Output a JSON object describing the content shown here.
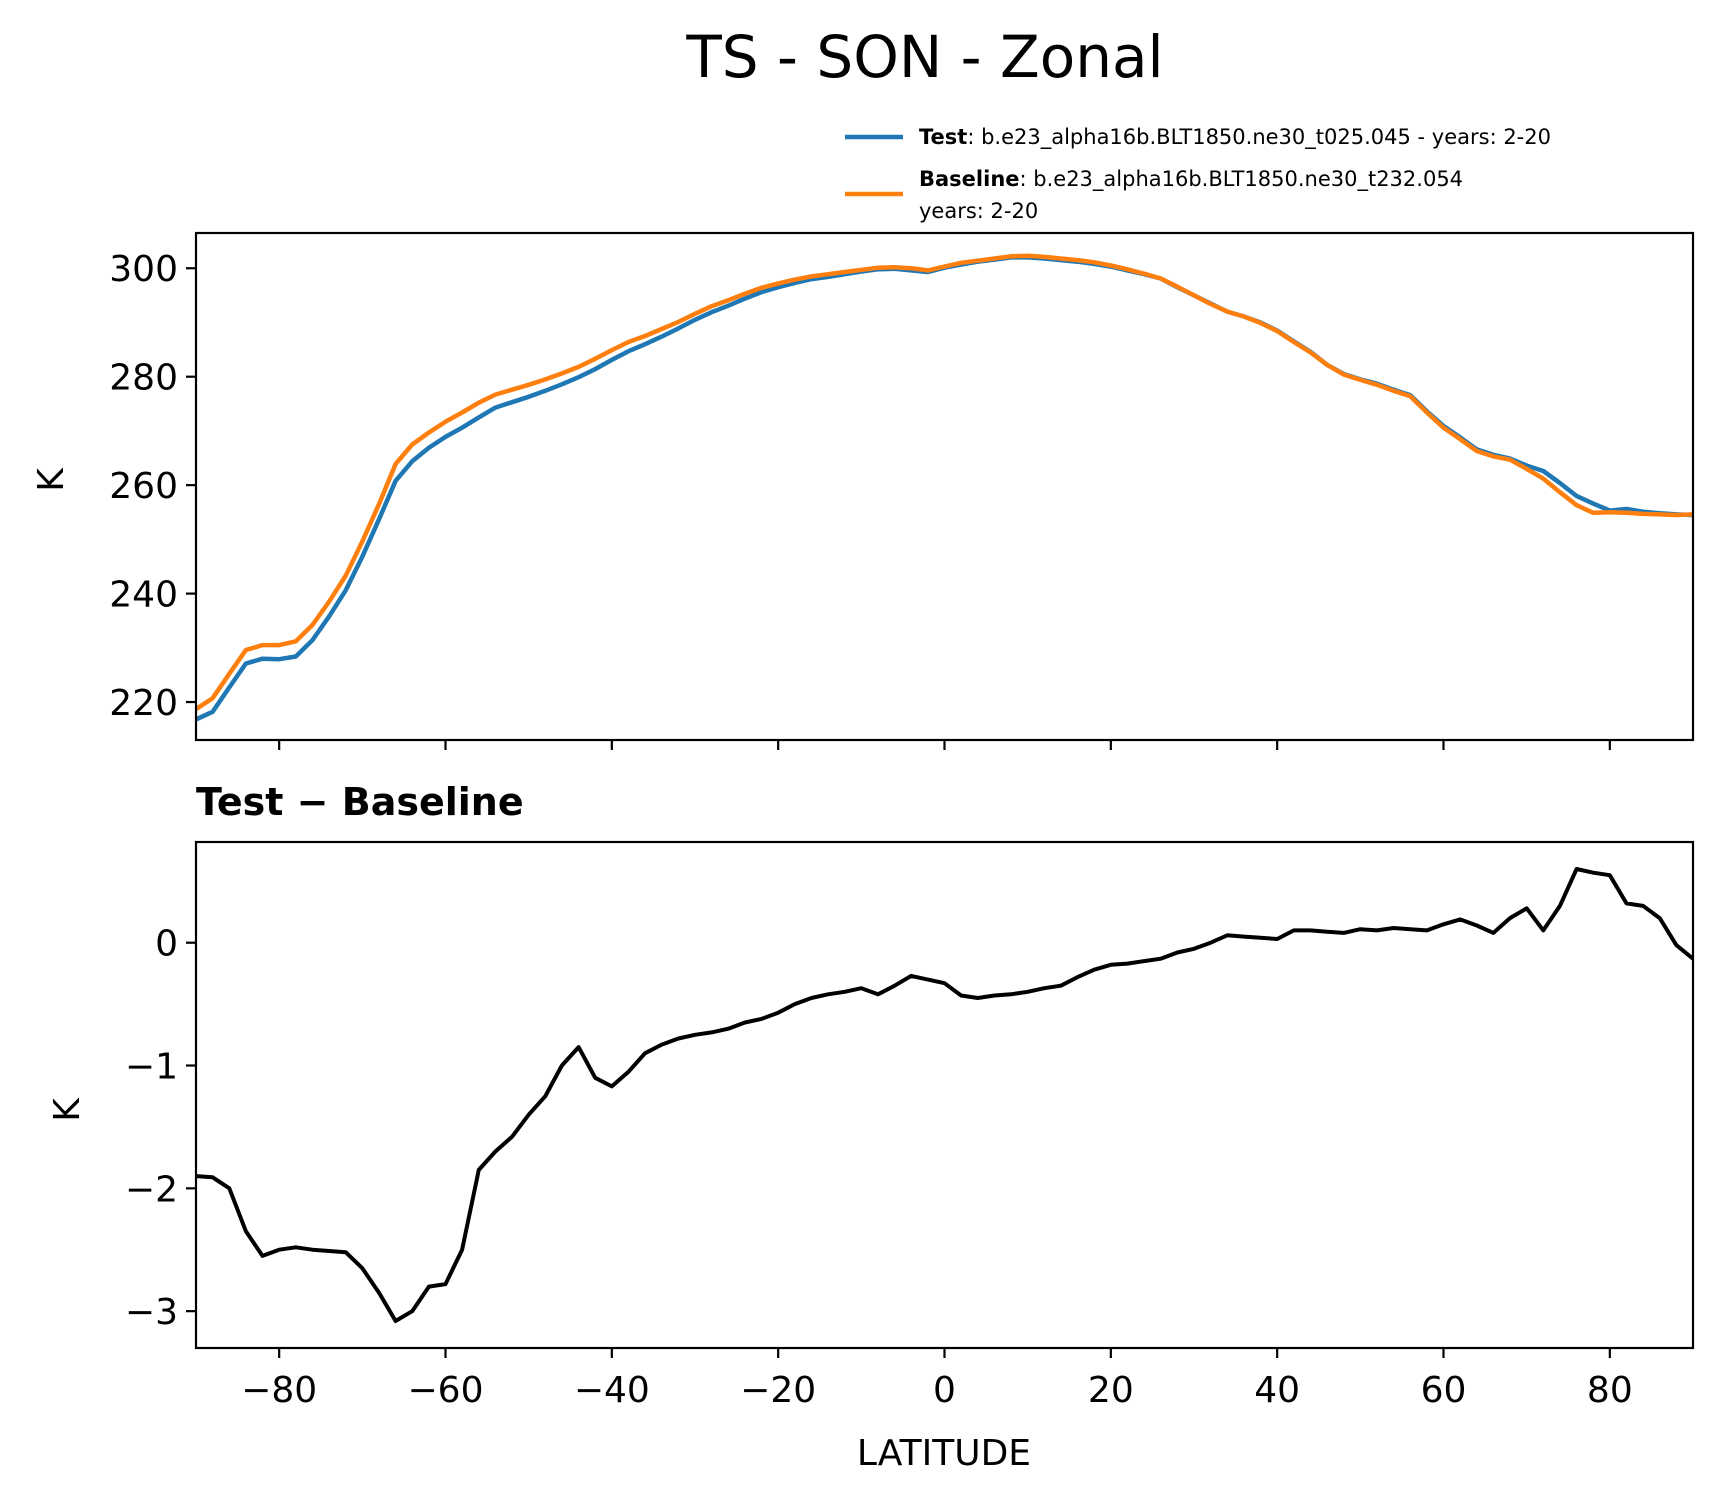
{
  "chart_data": [
    {
      "type": "line",
      "title": "TS - SON - Zonal",
      "xlabel": "",
      "ylabel": "K",
      "xlim": [
        -90,
        90
      ],
      "ylim": [
        213,
        306.5
      ],
      "xticks": [
        -80,
        -60,
        -40,
        -20,
        0,
        20,
        40,
        60,
        80
      ],
      "yticks": [
        220,
        240,
        260,
        280,
        300
      ],
      "ytick_labels": [
        "220",
        "240",
        "260",
        "280",
        "300"
      ],
      "legend_position": "top-right",
      "legend": [
        {
          "name_bold": "Test",
          "name_rest": ": b.e23_alpha16b.BLT1850.ne30_t025.045 - years: 2-20",
          "line2": "",
          "color": "#1f77b4"
        },
        {
          "name_bold": "Baseline",
          "name_rest": ": b.e23_alpha16b.BLT1850.ne30_t232.054",
          "line2": "years: 2-20",
          "color": "#ff7f0e"
        }
      ],
      "series": [
        {
          "name": "Test",
          "color": "#1f77b4",
          "x": [
            -90,
            -88,
            -86,
            -84,
            -82,
            -80,
            -78,
            -76,
            -74,
            -72,
            -70,
            -68,
            -66,
            -64,
            -62,
            -60,
            -58,
            -56,
            -54,
            -52,
            -50,
            -48,
            -46,
            -44,
            -42,
            -40,
            -38,
            -36,
            -34,
            -32,
            -30,
            -28,
            -26,
            -24,
            -22,
            -20,
            -18,
            -16,
            -14,
            -12,
            -10,
            -8,
            -6,
            -4,
            -2,
            0,
            2,
            4,
            6,
            8,
            10,
            12,
            14,
            16,
            18,
            20,
            22,
            24,
            26,
            28,
            30,
            32,
            34,
            36,
            38,
            40,
            42,
            44,
            46,
            48,
            50,
            52,
            54,
            56,
            58,
            60,
            62,
            64,
            66,
            68,
            70,
            72,
            74,
            76,
            78,
            80,
            82,
            84,
            86,
            88,
            90
          ],
          "values": [
            216.8,
            218.2,
            222.7,
            227.1,
            228.0,
            227.9,
            228.4,
            231.4,
            235.8,
            240.6,
            246.8,
            253.7,
            260.8,
            264.4,
            266.9,
            268.9,
            270.6,
            272.5,
            274.3,
            275.3,
            276.3,
            277.4,
            278.6,
            279.9,
            281.4,
            283.1,
            284.7,
            286.0,
            287.4,
            288.9,
            290.5,
            291.9,
            293.1,
            294.4,
            295.6,
            296.5,
            297.3,
            298.0,
            298.4,
            298.9,
            299.4,
            299.8,
            299.9,
            299.6,
            299.3,
            300.1,
            300.7,
            301.2,
            301.6,
            302.0,
            302.0,
            301.8,
            301.5,
            301.2,
            300.8,
            300.3,
            299.6,
            298.9,
            298.1,
            296.5,
            295.0,
            293.5,
            292.0,
            291.1,
            290.0,
            288.5,
            286.5,
            284.6,
            282.2,
            280.5,
            279.5,
            278.7,
            277.6,
            276.6,
            273.6,
            270.9,
            268.8,
            266.6,
            265.6,
            264.9,
            263.6,
            262.6,
            260.4,
            258.0,
            256.6,
            255.3,
            255.6,
            255.1,
            254.8,
            254.6,
            254.5
          ]
        },
        {
          "name": "Baseline",
          "color": "#ff7f0e",
          "x": [
            -90,
            -88,
            -86,
            -84,
            -82,
            -80,
            -78,
            -76,
            -74,
            -72,
            -70,
            -68,
            -66,
            -64,
            -62,
            -60,
            -58,
            -56,
            -54,
            -52,
            -50,
            -48,
            -46,
            -44,
            -42,
            -40,
            -38,
            -36,
            -34,
            -32,
            -30,
            -28,
            -26,
            -24,
            -22,
            -20,
            -18,
            -16,
            -14,
            -12,
            -10,
            -8,
            -6,
            -4,
            -2,
            0,
            2,
            4,
            6,
            8,
            10,
            12,
            14,
            16,
            18,
            20,
            22,
            24,
            26,
            28,
            30,
            32,
            34,
            36,
            38,
            40,
            42,
            44,
            46,
            48,
            50,
            52,
            54,
            56,
            58,
            60,
            62,
            64,
            66,
            68,
            70,
            72,
            74,
            76,
            78,
            80,
            82,
            84,
            86,
            88,
            90
          ],
          "values": [
            218.7,
            220.7,
            225.2,
            229.6,
            230.5,
            230.5,
            231.2,
            234.2,
            238.5,
            243.3,
            249.6,
            256.5,
            263.9,
            267.5,
            269.7,
            271.7,
            273.4,
            275.2,
            276.7,
            277.6,
            278.5,
            279.5,
            280.6,
            281.8,
            283.3,
            284.9,
            286.4,
            287.5,
            288.8,
            290.1,
            291.6,
            293.0,
            294.1,
            295.3,
            296.4,
            297.2,
            297.9,
            298.5,
            298.9,
            299.3,
            299.7,
            300.1,
            300.2,
            300.0,
            299.6,
            300.3,
            301.0,
            301.4,
            301.8,
            302.2,
            302.3,
            302.1,
            301.8,
            301.5,
            301.1,
            300.5,
            299.8,
            299.0,
            298.1,
            296.6,
            295.0,
            293.4,
            292.0,
            291.1,
            289.9,
            288.4,
            286.4,
            284.5,
            282.2,
            280.4,
            279.4,
            278.5,
            277.4,
            276.4,
            273.4,
            270.6,
            268.5,
            266.3,
            265.3,
            264.7,
            263.0,
            261.2,
            258.7,
            256.3,
            254.9,
            255.0,
            254.9,
            254.7,
            254.6,
            254.5,
            254.6
          ]
        }
      ]
    },
    {
      "type": "line",
      "title": "Test − Baseline",
      "xlabel": "LATITUDE",
      "ylabel": "K",
      "xlim": [
        -90,
        90
      ],
      "ylim": [
        -3.3,
        0.82
      ],
      "xticks": [
        -80,
        -60,
        -40,
        -20,
        0,
        20,
        40,
        60,
        80
      ],
      "xtick_labels": [
        "−80",
        "−60",
        "−40",
        "−20",
        "0",
        "20",
        "40",
        "60",
        "80"
      ],
      "yticks": [
        -3,
        -2,
        -1,
        0
      ],
      "ytick_labels": [
        "−3",
        "−2",
        "−1",
        "0"
      ],
      "series": [
        {
          "name": "Test − Baseline",
          "color": "#000000",
          "x": [
            -90,
            -88,
            -86,
            -84,
            -82,
            -80,
            -78,
            -76,
            -74,
            -72,
            -70,
            -68,
            -66,
            -64,
            -62,
            -60,
            -58,
            -56,
            -54,
            -52,
            -50,
            -48,
            -46,
            -44,
            -42,
            -40,
            -38,
            -36,
            -34,
            -32,
            -30,
            -28,
            -26,
            -24,
            -22,
            -20,
            -18,
            -16,
            -14,
            -12,
            -10,
            -8,
            -6,
            -4,
            -2,
            0,
            2,
            4,
            6,
            8,
            10,
            12,
            14,
            16,
            18,
            20,
            22,
            24,
            26,
            28,
            30,
            32,
            34,
            36,
            38,
            40,
            42,
            44,
            46,
            48,
            50,
            52,
            54,
            56,
            58,
            60,
            62,
            64,
            66,
            68,
            70,
            72,
            74,
            76,
            78,
            80,
            82,
            84,
            86,
            88,
            90
          ],
          "values": [
            -1.9,
            -1.91,
            -2.0,
            -2.35,
            -2.55,
            -2.5,
            -2.48,
            -2.5,
            -2.51,
            -2.52,
            -2.65,
            -2.85,
            -3.08,
            -3.0,
            -2.8,
            -2.78,
            -2.5,
            -1.85,
            -1.7,
            -1.58,
            -1.4,
            -1.25,
            -1.0,
            -0.85,
            -1.1,
            -1.17,
            -1.05,
            -0.9,
            -0.83,
            -0.78,
            -0.75,
            -0.73,
            -0.7,
            -0.65,
            -0.62,
            -0.57,
            -0.5,
            -0.45,
            -0.42,
            -0.4,
            -0.37,
            -0.42,
            -0.35,
            -0.27,
            -0.3,
            -0.33,
            -0.43,
            -0.45,
            -0.43,
            -0.42,
            -0.4,
            -0.37,
            -0.35,
            -0.28,
            -0.22,
            -0.18,
            -0.17,
            -0.15,
            -0.13,
            -0.08,
            -0.05,
            0.0,
            0.06,
            0.05,
            0.04,
            0.03,
            0.1,
            0.1,
            0.09,
            0.08,
            0.11,
            0.1,
            0.12,
            0.11,
            0.1,
            0.15,
            0.19,
            0.14,
            0.08,
            0.2,
            0.28,
            0.1,
            0.3,
            0.6,
            0.57,
            0.55,
            0.32,
            0.3,
            0.2,
            -0.02,
            -0.13
          ]
        }
      ]
    }
  ]
}
